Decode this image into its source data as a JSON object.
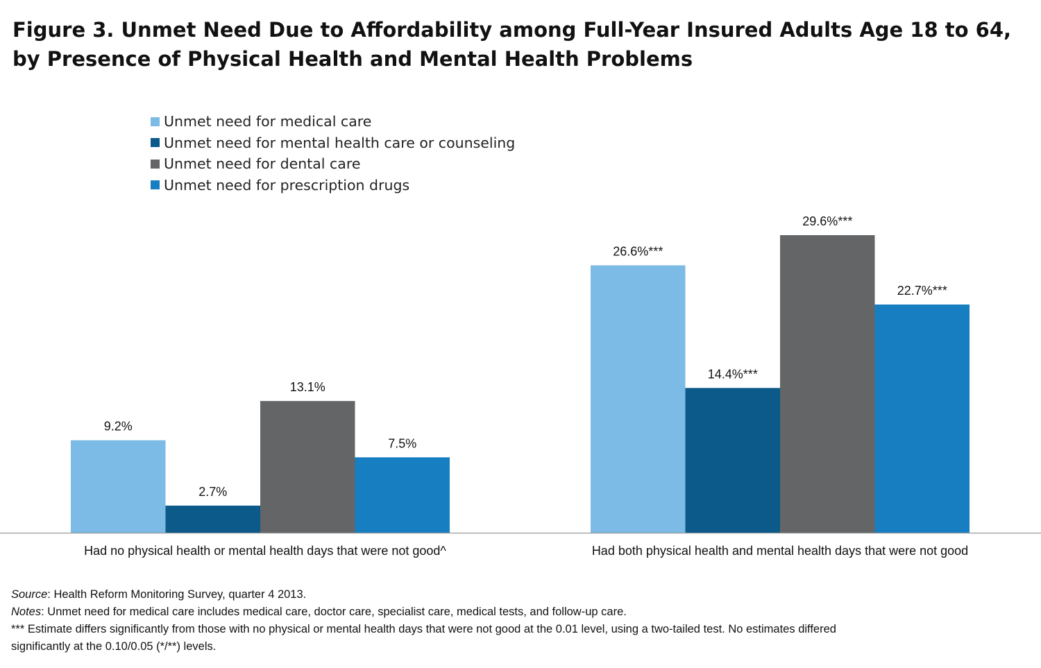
{
  "title": {
    "line1": "Figure 3. Unmet Need Due to Affordability among Full-Year Insured Adults Age 18 to 64,",
    "line2": "by Presence of Physical Health and Mental Health Problems"
  },
  "chart_data": {
    "type": "bar",
    "categories": [
      "Had no physical health or mental health days that were not good^",
      "Had both physical health and mental health days that were not good"
    ],
    "series": [
      {
        "name": "Unmet need for medical care",
        "color": "#7bbbe5",
        "values": [
          9.2,
          26.6
        ],
        "labels": [
          "9.2%",
          "26.6%***"
        ]
      },
      {
        "name": "Unmet need for mental health care or counseling",
        "color": "#0b5a8a",
        "values": [
          2.7,
          14.4
        ],
        "labels": [
          "2.7%",
          "14.4%***"
        ]
      },
      {
        "name": "Unmet need for dental care",
        "color": "#646567",
        "values": [
          13.1,
          29.6
        ],
        "labels": [
          "13.1%",
          "29.6%***"
        ]
      },
      {
        "name": "Unmet need for prescription drugs",
        "color": "#167ec1",
        "values": [
          7.5,
          22.7
        ],
        "labels": [
          "7.5%",
          "22.7%***"
        ]
      }
    ],
    "ylim": [
      0,
      30
    ],
    "grid": false,
    "legend_position": "top-left"
  },
  "footer": {
    "source_label": "Source",
    "source_text": ": Health Reform Monitoring Survey, quarter 4 2013.",
    "notes_label": "Notes",
    "notes_text": ": Unmet need for medical care includes medical care, doctor care, specialist care, medical tests, and follow-up care.",
    "significance_line1": "*** Estimate differs significantly from those with no physical or mental health days that were not good at the 0.01 level, using a two-tailed test. No estimates differed",
    "significance_line2": "significantly at the 0.10/0.05 (*/**) levels."
  }
}
